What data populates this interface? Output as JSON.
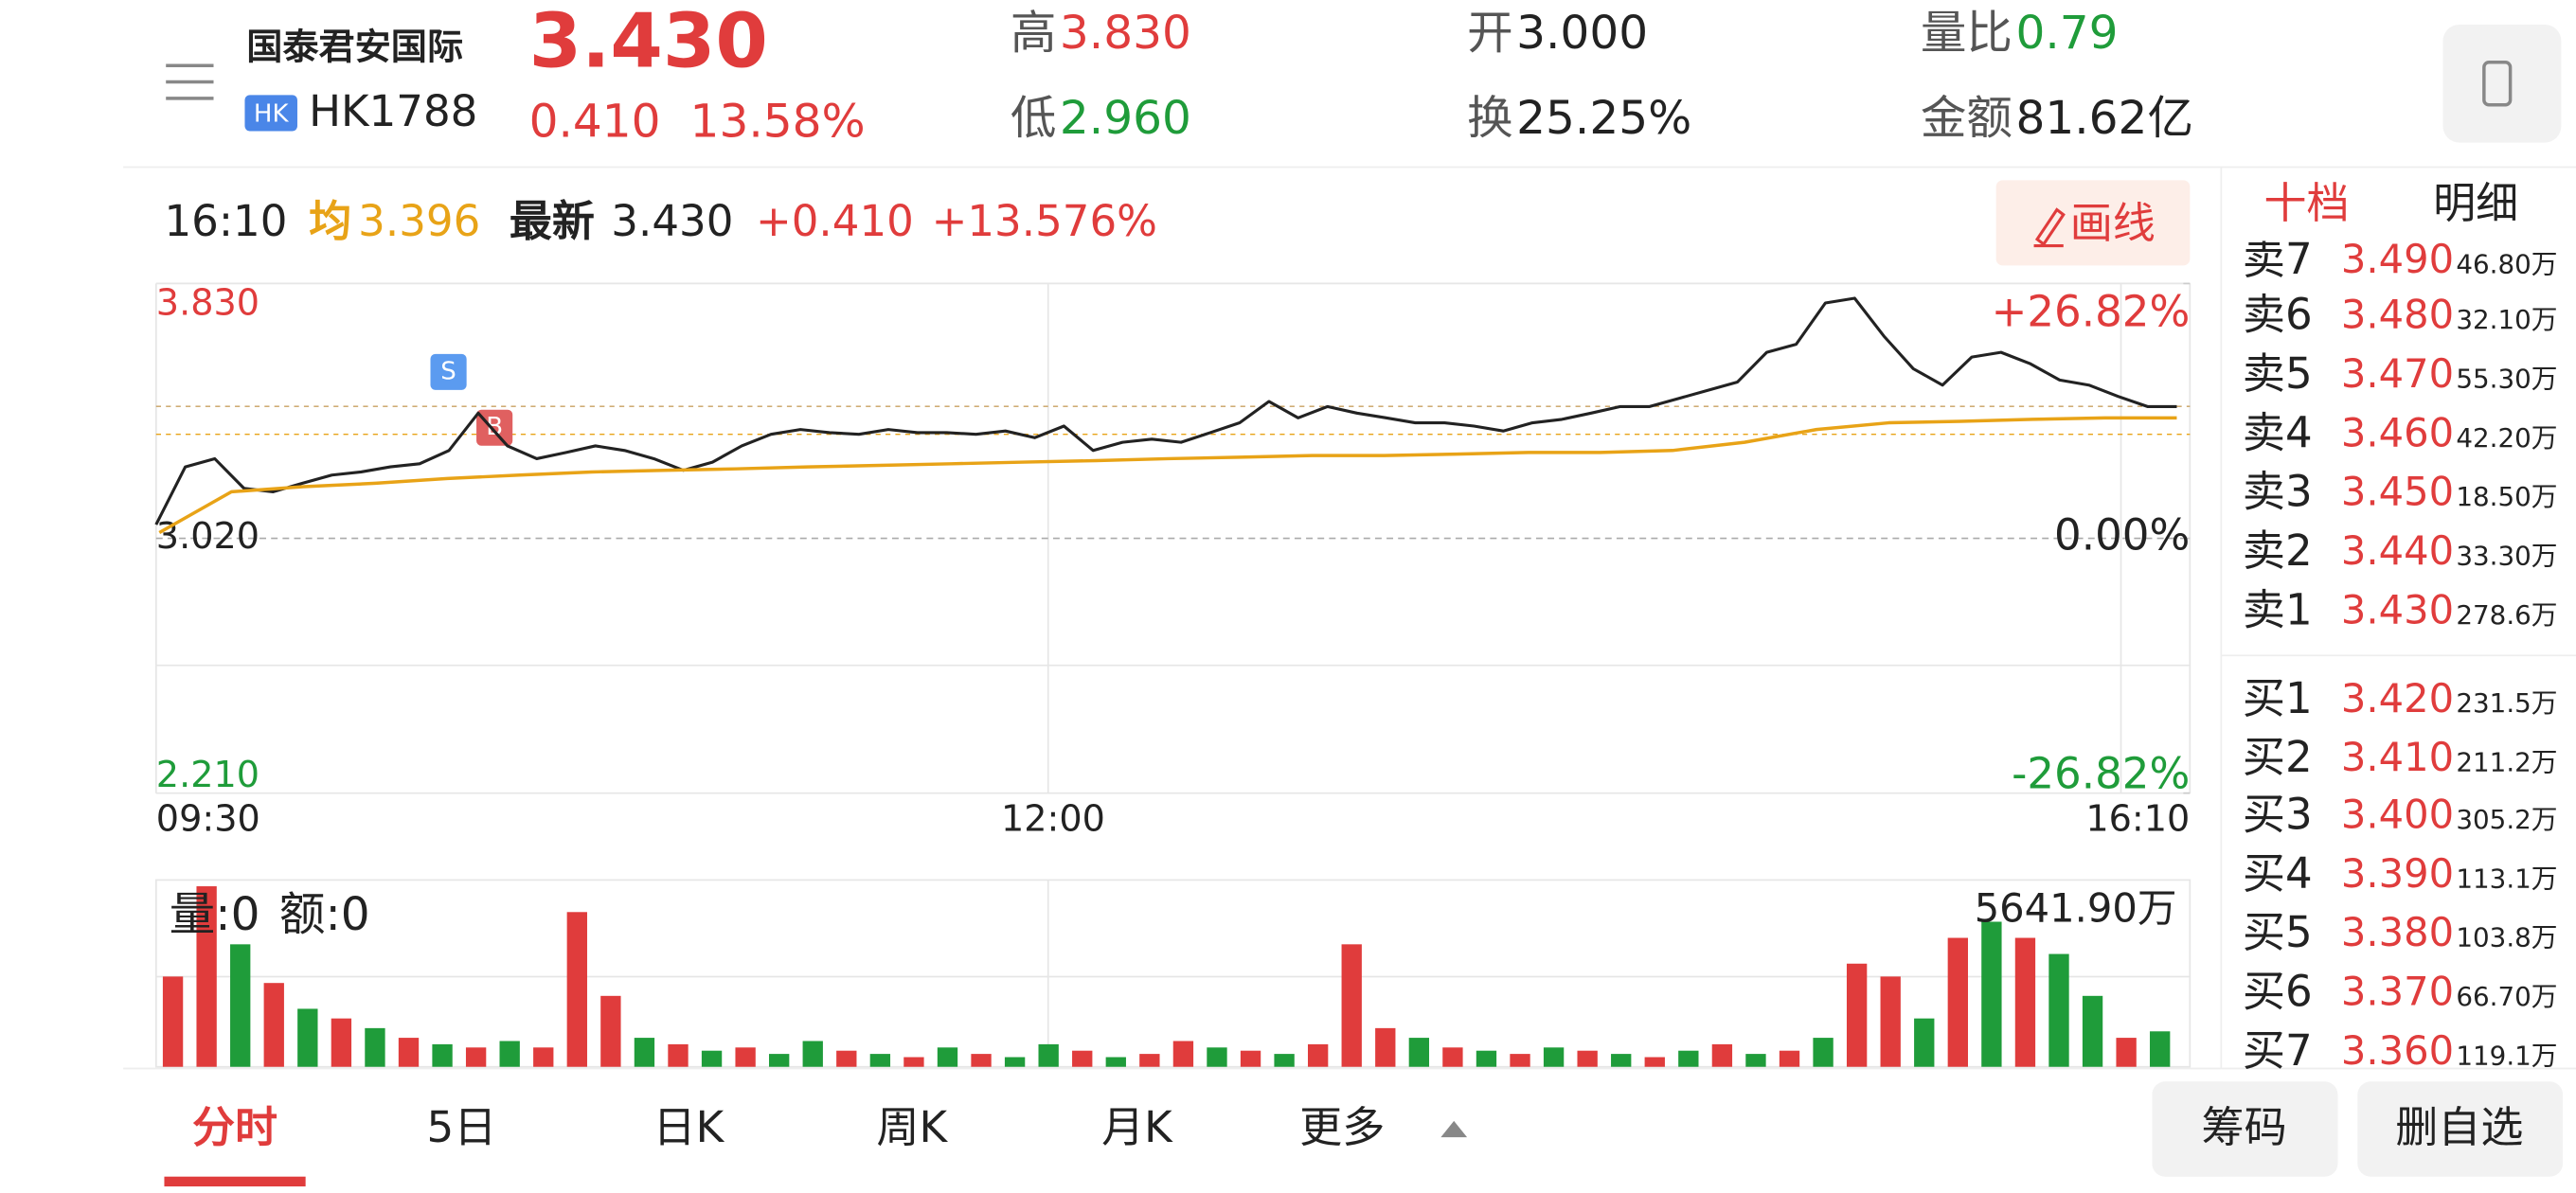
{
  "header": {
    "name": "国泰君安国际",
    "market": "HK",
    "code": "HK1788",
    "price": "3.430",
    "change": "0.410",
    "change_pct": "13.58%",
    "stats": [
      {
        "label": "高",
        "value": "3.830"
      },
      {
        "label": "低",
        "value": "2.960"
      },
      {
        "label": "开",
        "value": "3.000"
      },
      {
        "label": "换",
        "value": "25.25%"
      },
      {
        "label": "量比",
        "value": "0.79"
      },
      {
        "label": "金额",
        "value": "81.62亿"
      }
    ]
  },
  "info_bar": {
    "time": "16:10",
    "avg_label": "均",
    "avg": "3.396",
    "latest_label": "最新",
    "latest": "3.430",
    "change": "+0.410",
    "change_pct": "+13.576%",
    "draw_button": "画线"
  },
  "chart_data": {
    "type": "line",
    "ylim": [
      2.21,
      3.83
    ],
    "yticks": [
      {
        "value": 3.83,
        "label": "3.830"
      },
      {
        "value": 3.02,
        "label": "3.020"
      },
      {
        "value": 2.21,
        "label": "2.210"
      }
    ],
    "y2lim": [
      -26.82,
      26.82
    ],
    "y2ticks": [
      {
        "value": 26.82,
        "label": "+26.82%"
      },
      {
        "value": 0,
        "label": "0.00%"
      },
      {
        "value": -26.82,
        "label": "-26.82%"
      }
    ],
    "x_labels": [
      "09:30",
      "12:00",
      "16:10"
    ],
    "markers": [
      "S",
      "B"
    ],
    "series": [
      {
        "color": "#222222",
        "values": [
          3.064,
          3.247,
          3.273,
          3.179,
          3.168,
          3.195,
          3.221,
          3.231,
          3.247,
          3.257,
          3.299,
          3.418,
          3.314,
          3.273,
          3.293,
          3.314,
          3.299,
          3.273,
          3.236,
          3.262,
          3.314,
          3.351,
          3.366,
          3.356,
          3.351,
          3.366,
          3.356,
          3.356,
          3.351,
          3.361,
          3.34,
          3.377,
          3.299,
          3.325,
          3.335,
          3.325,
          3.356,
          3.387,
          3.455,
          3.403,
          3.439,
          3.418,
          3.403,
          3.387,
          3.387,
          3.377,
          3.361,
          3.387,
          3.398,
          3.418,
          3.439,
          3.439,
          3.465,
          3.491,
          3.517,
          3.611,
          3.637,
          3.768,
          3.783,
          3.663,
          3.559,
          3.507,
          3.596,
          3.611,
          3.575,
          3.523,
          3.507,
          3.471,
          3.439,
          3.439
        ]
      },
      {
        "color": "#e8a317",
        "values": [
          3.038,
          3.168,
          3.184,
          3.195,
          3.21,
          3.221,
          3.231,
          3.236,
          3.241,
          3.247,
          3.252,
          3.257,
          3.262,
          3.267,
          3.273,
          3.278,
          3.283,
          3.283,
          3.288,
          3.293,
          3.293,
          3.299,
          3.325,
          3.366,
          3.387,
          3.392,
          3.398,
          3.403,
          3.403
        ]
      }
    ]
  },
  "volume_chart": {
    "type": "bar",
    "volume_label": "量:0",
    "amount_label": "额:0",
    "max_label": "5641.90万",
    "ylim": [
      0,
      5641.9
    ],
    "up_color": "#e03c3c",
    "down_color": "#1f9c3a",
    "values": [
      2800,
      5600,
      3800,
      2600,
      1800,
      1500,
      1200,
      900,
      700,
      600,
      800,
      600,
      4800,
      2200,
      900,
      700,
      500,
      600,
      400,
      800,
      500,
      400,
      300,
      600,
      400,
      300,
      700,
      500,
      300,
      400,
      800,
      600,
      500,
      400,
      700,
      3800,
      1200,
      900,
      600,
      500,
      400,
      600,
      500,
      400,
      300,
      500,
      700,
      400,
      500,
      900,
      3200,
      2800,
      1500,
      4000,
      4500,
      4000,
      3500,
      2200,
      900,
      1100
    ],
    "up": [
      true,
      true,
      false,
      true,
      false,
      true,
      false,
      true,
      false,
      true,
      false,
      true,
      true,
      true,
      false,
      true,
      false,
      true,
      false,
      false,
      true,
      false,
      true,
      false,
      true,
      false,
      false,
      true,
      false,
      true,
      true,
      false,
      true,
      false,
      true,
      true,
      true,
      false,
      true,
      false,
      true,
      false,
      true,
      false,
      true,
      false,
      true,
      false,
      true,
      false,
      true,
      true,
      false,
      true,
      false,
      true,
      false,
      false,
      true,
      false
    ]
  },
  "order_book": {
    "tabs": [
      "十档",
      "明细"
    ],
    "asks": [
      {
        "label": "卖7",
        "price": "3.490",
        "volume": "46.80万"
      },
      {
        "label": "卖6",
        "price": "3.480",
        "volume": "32.10万"
      },
      {
        "label": "卖5",
        "price": "3.470",
        "volume": "55.30万"
      },
      {
        "label": "卖4",
        "price": "3.460",
        "volume": "42.20万"
      },
      {
        "label": "卖3",
        "price": "3.450",
        "volume": "18.50万"
      },
      {
        "label": "卖2",
        "price": "3.440",
        "volume": "33.30万"
      },
      {
        "label": "卖1",
        "price": "3.430",
        "volume": "278.6万"
      }
    ],
    "bids": [
      {
        "label": "买1",
        "price": "3.420",
        "volume": "231.5万"
      },
      {
        "label": "买2",
        "price": "3.410",
        "volume": "211.2万"
      },
      {
        "label": "买3",
        "price": "3.400",
        "volume": "305.2万"
      },
      {
        "label": "买4",
        "price": "3.390",
        "volume": "113.1万"
      },
      {
        "label": "买5",
        "price": "3.380",
        "volume": "103.8万"
      },
      {
        "label": "买6",
        "price": "3.370",
        "volume": "66.70万"
      },
      {
        "label": "买7",
        "price": "3.360",
        "volume": "119.1万"
      }
    ]
  },
  "tabs": [
    "分时",
    "5日",
    "日K",
    "周K",
    "月K",
    "更多"
  ],
  "buttons": [
    "筹码",
    "删自选"
  ]
}
